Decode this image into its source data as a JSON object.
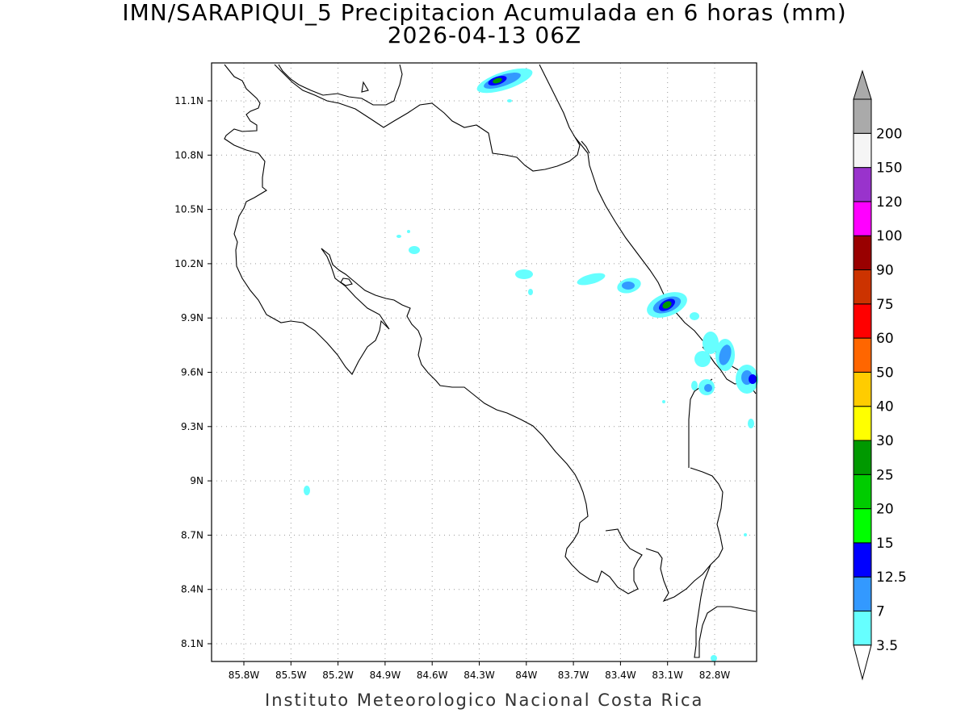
{
  "title": {
    "line1": "IMN/SARAPIQUI_5 Precipitacion Acumulada en 6 horas (mm)",
    "line2": "2026-04-13 06Z"
  },
  "footer": "Instituto Meteorologico Nacional Costa Rica",
  "map": {
    "lon_range": [
      -86.0,
      -82.55
    ],
    "lat_range": [
      8.0,
      11.3
    ],
    "lat_ticks": [
      "11.1N",
      "10.8N",
      "10.5N",
      "10.2N",
      "9.9N",
      "9.6N",
      "9.3N",
      "9N",
      "8.7N",
      "8.4N",
      "8.1N"
    ],
    "lon_ticks": [
      "85.8W",
      "85.5W",
      "85.2W",
      "84.9W",
      "84.6W",
      "84.3W",
      "84W",
      "83.7W",
      "83.4W",
      "83.1W",
      "82.8W"
    ],
    "grid": "dotted"
  },
  "colorbar": {
    "labels": [
      "3.5",
      "7",
      "12.5",
      "15",
      "20",
      "25",
      "30",
      "40",
      "50",
      "60",
      "75",
      "90",
      "100",
      "120",
      "150",
      "200"
    ],
    "colors": [
      "#66ffff",
      "#3399ff",
      "#0000ff",
      "#00ff00",
      "#00cc00",
      "#009900",
      "#ffff00",
      "#ffcc00",
      "#ff6600",
      "#ff0000",
      "#cc3300",
      "#990000",
      "#ff00ff",
      "#9933cc",
      "#f5f5f5",
      "#aaaaaa"
    ],
    "below_color": "#ffffff",
    "above_color": "#aaaaaa"
  }
}
